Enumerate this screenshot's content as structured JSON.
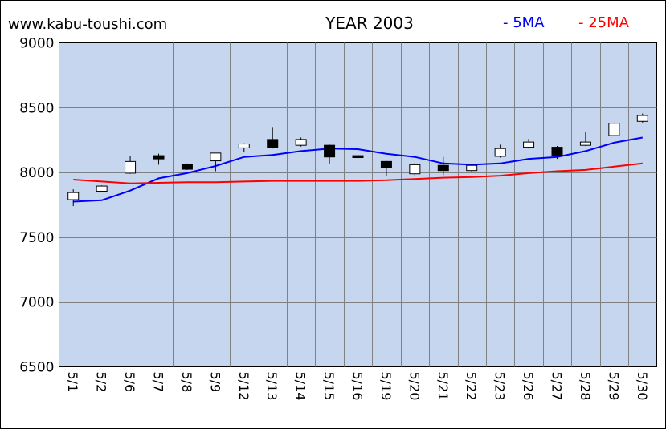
{
  "site_label": "www.kabu-toushi.com",
  "chart_data": {
    "type": "candlestick",
    "title": "YEAR 2003",
    "xlabel": "",
    "ylabel": "",
    "ylim": [
      6500,
      9000
    ],
    "yticks": [
      9000,
      8500,
      8000,
      7500,
      7000,
      6500
    ],
    "grid": true,
    "legend_position": "top-right",
    "categories": [
      "5/1",
      "5/2",
      "5/6",
      "5/7",
      "5/8",
      "5/9",
      "5/12",
      "5/13",
      "5/14",
      "5/15",
      "5/16",
      "5/19",
      "5/20",
      "5/21",
      "5/22",
      "5/23",
      "5/26",
      "5/27",
      "5/28",
      "5/29",
      "5/30"
    ],
    "candles": [
      {
        "open": 7790,
        "high": 7870,
        "low": 7740,
        "close": 7845
      },
      {
        "open": 7855,
        "high": 7900,
        "low": 7850,
        "close": 7895
      },
      {
        "open": 7995,
        "high": 8130,
        "low": 7990,
        "close": 8085
      },
      {
        "open": 8130,
        "high": 8145,
        "low": 8060,
        "close": 8105
      },
      {
        "open": 8065,
        "high": 8070,
        "low": 8020,
        "close": 8025
      },
      {
        "open": 8090,
        "high": 8145,
        "low": 8010,
        "close": 8150
      },
      {
        "open": 8190,
        "high": 8225,
        "low": 8155,
        "close": 8220
      },
      {
        "open": 8255,
        "high": 8345,
        "low": 8185,
        "close": 8190
      },
      {
        "open": 8210,
        "high": 8270,
        "low": 8200,
        "close": 8255
      },
      {
        "open": 8210,
        "high": 8215,
        "low": 8070,
        "close": 8120
      },
      {
        "open": 8130,
        "high": 8140,
        "low": 8090,
        "close": 8115
      },
      {
        "open": 8085,
        "high": 8090,
        "low": 7970,
        "close": 8035
      },
      {
        "open": 7990,
        "high": 8075,
        "low": 7975,
        "close": 8060
      },
      {
        "open": 8055,
        "high": 8120,
        "low": 7980,
        "close": 8015
      },
      {
        "open": 8015,
        "high": 8065,
        "low": 8000,
        "close": 8055
      },
      {
        "open": 8125,
        "high": 8215,
        "low": 8115,
        "close": 8185
      },
      {
        "open": 8195,
        "high": 8260,
        "low": 8185,
        "close": 8235
      },
      {
        "open": 8195,
        "high": 8205,
        "low": 8105,
        "close": 8130
      },
      {
        "open": 8210,
        "high": 8315,
        "low": 8205,
        "close": 8235
      },
      {
        "open": 8285,
        "high": 8385,
        "low": 8280,
        "close": 8380
      },
      {
        "open": 8395,
        "high": 8455,
        "low": 8385,
        "close": 8440
      }
    ],
    "series": [
      {
        "name": "5MA",
        "color": "#0000ff",
        "values": [
          7775,
          7785,
          7860,
          7955,
          7995,
          8050,
          8120,
          8135,
          8165,
          8185,
          8180,
          8145,
          8120,
          8070,
          8060,
          8070,
          8105,
          8120,
          8165,
          8230,
          8270
        ]
      },
      {
        "name": "25MA",
        "color": "#ff0000",
        "values": [
          7945,
          7930,
          7915,
          7920,
          7925,
          7925,
          7930,
          7935,
          7935,
          7935,
          7935,
          7940,
          7950,
          7960,
          7965,
          7975,
          7995,
          8010,
          8020,
          8045,
          8070
        ]
      }
    ],
    "legend": [
      {
        "label": "- 5MA",
        "color": "#0000ff"
      },
      {
        "label": "- 25MA",
        "color": "#ff0000"
      }
    ],
    "up_color": "#ffffff",
    "down_color": "#000000"
  }
}
